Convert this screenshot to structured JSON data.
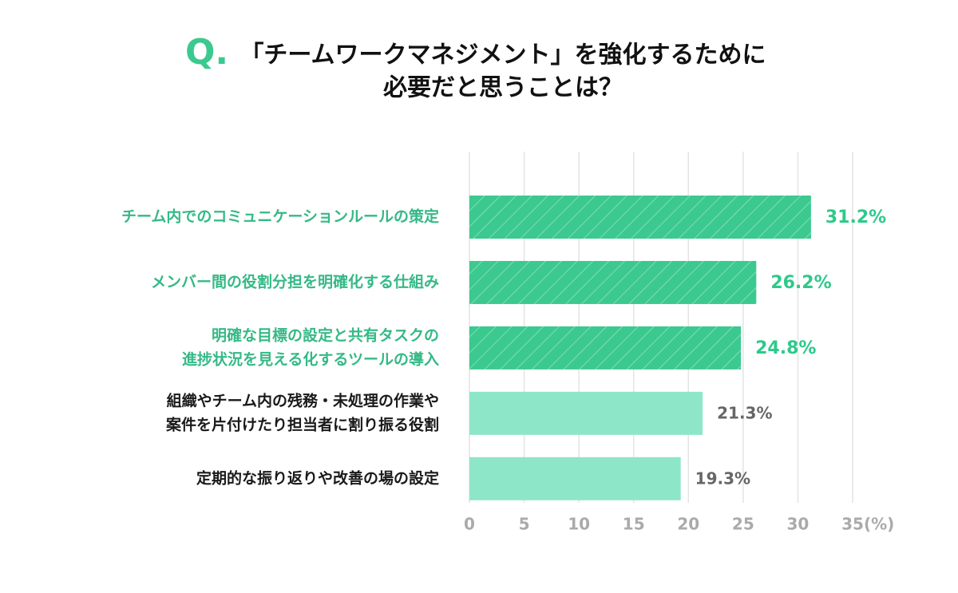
{
  "chart_data": {
    "type": "bar",
    "orientation": "horizontal",
    "title_marker": "Q.",
    "title": [
      "「チームワークマネジメント」を強化するために",
      "必要だと思うことは？"
    ],
    "categories": [
      [
        "チーム内でのコミュニケーションルールの策定"
      ],
      [
        "メンバー間の役割分担を明確化する仕組み"
      ],
      [
        "明確な目標の設定と共有タスクの",
        "進捗状況を見える化するツールの導入"
      ],
      [
        "組織やチーム内の残務・未処理の作業や",
        "案件を片付けたり担当者に割り振る役割"
      ],
      [
        "定期的な振り返りや改善の場の設定"
      ]
    ],
    "values": [
      31.2,
      26.2,
      24.8,
      21.3,
      19.3
    ],
    "value_labels": [
      "31.2%",
      "26.2%",
      "24.8%",
      "21.3%",
      "19.3%"
    ],
    "colors": [
      "#3cc98f",
      "#3cc98f",
      "#3cc98f",
      "#8ee6c8",
      "#8ee6c8"
    ],
    "hatched": [
      true,
      true,
      true,
      false,
      false
    ],
    "label_colors": [
      "#35b986",
      "#35b986",
      "#35b986",
      "#1a1a1a",
      "#1a1a1a"
    ],
    "value_label_colors": [
      "#2ec98a",
      "#2ec98a",
      "#2ec98a",
      "#666666",
      "#666666"
    ],
    "xlim": [
      0,
      35
    ],
    "xticks": [
      0,
      5,
      10,
      15,
      20,
      25,
      30,
      35
    ],
    "x_unit": "(%)",
    "grid": true
  }
}
